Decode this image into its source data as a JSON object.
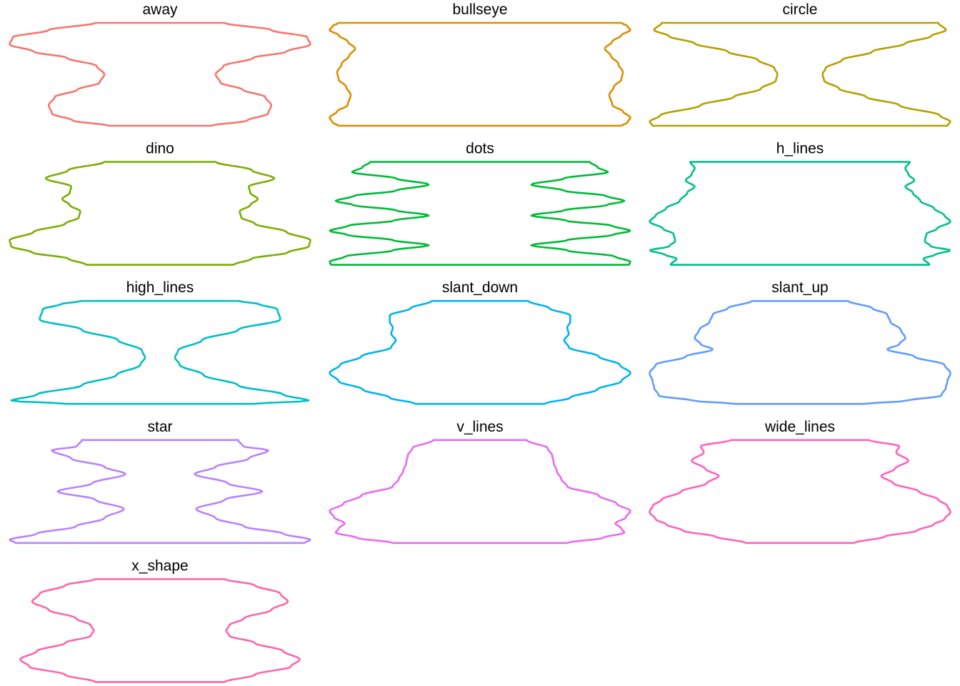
{
  "chart_data": {
    "type": "violin",
    "layout": "facet grid, 3 columns, free y-scales, axes hidden",
    "grid": false,
    "legend": "none",
    "panels": [
      {
        "name": "away",
        "color": "#F8766D",
        "profile": [
          [
            0,
            0.34
          ],
          [
            0.05,
            0.58
          ],
          [
            0.12,
            0.72
          ],
          [
            0.2,
            0.74
          ],
          [
            0.28,
            0.7
          ],
          [
            0.35,
            0.55
          ],
          [
            0.42,
            0.4
          ],
          [
            0.5,
            0.37
          ],
          [
            0.58,
            0.42
          ],
          [
            0.66,
            0.62
          ],
          [
            0.72,
            0.84
          ],
          [
            0.79,
            1.0
          ],
          [
            0.86,
            0.98
          ],
          [
            0.93,
            0.74
          ],
          [
            1,
            0.43
          ]
        ]
      },
      {
        "name": "bullseye",
        "color": "#DE8C00",
        "profile": [
          [
            0,
            0.94
          ],
          [
            0.03,
            0.98
          ],
          [
            0.08,
            1.0
          ],
          [
            0.14,
            0.95
          ],
          [
            0.2,
            0.88
          ],
          [
            0.3,
            0.86
          ],
          [
            0.38,
            0.89
          ],
          [
            0.45,
            0.94
          ],
          [
            0.52,
            0.95
          ],
          [
            0.6,
            0.92
          ],
          [
            0.68,
            0.87
          ],
          [
            0.75,
            0.83
          ],
          [
            0.82,
            0.88
          ],
          [
            0.88,
            0.94
          ],
          [
            0.93,
            1.0
          ],
          [
            0.97,
            0.98
          ],
          [
            1,
            0.94
          ]
        ]
      },
      {
        "name": "circle",
        "color": "#B79F00",
        "profile": [
          [
            0,
            0.98
          ],
          [
            0.04,
            1.0
          ],
          [
            0.1,
            0.93
          ],
          [
            0.2,
            0.66
          ],
          [
            0.28,
            0.44
          ],
          [
            0.36,
            0.26
          ],
          [
            0.44,
            0.16
          ],
          [
            0.5,
            0.15
          ],
          [
            0.56,
            0.17
          ],
          [
            0.64,
            0.28
          ],
          [
            0.72,
            0.48
          ],
          [
            0.8,
            0.7
          ],
          [
            0.87,
            0.87
          ],
          [
            0.93,
            0.97
          ],
          [
            1,
            0.92
          ]
        ]
      },
      {
        "name": "dino",
        "color": "#7CAE00",
        "profile": [
          [
            0,
            0.49
          ],
          [
            0.06,
            0.61
          ],
          [
            0.12,
            0.85
          ],
          [
            0.18,
            0.99
          ],
          [
            0.24,
            1.0
          ],
          [
            0.32,
            0.84
          ],
          [
            0.4,
            0.63
          ],
          [
            0.46,
            0.54
          ],
          [
            0.52,
            0.53
          ],
          [
            0.58,
            0.6
          ],
          [
            0.64,
            0.65
          ],
          [
            0.7,
            0.6
          ],
          [
            0.76,
            0.59
          ],
          [
            0.84,
            0.76
          ],
          [
            0.92,
            0.61
          ],
          [
            1,
            0.37
          ]
        ]
      },
      {
        "name": "dots",
        "color": "#00BA38",
        "profile": [
          [
            0,
            0.99
          ],
          [
            0.03,
            1.0
          ],
          [
            0.08,
            0.9
          ],
          [
            0.14,
            0.58
          ],
          [
            0.19,
            0.34
          ],
          [
            0.24,
            0.58
          ],
          [
            0.29,
            0.88
          ],
          [
            0.33,
            1.0
          ],
          [
            0.38,
            0.88
          ],
          [
            0.43,
            0.57
          ],
          [
            0.48,
            0.34
          ],
          [
            0.53,
            0.56
          ],
          [
            0.58,
            0.84
          ],
          [
            0.62,
            0.96
          ],
          [
            0.67,
            0.84
          ],
          [
            0.72,
            0.56
          ],
          [
            0.78,
            0.34
          ],
          [
            0.84,
            0.56
          ],
          [
            0.9,
            0.85
          ],
          [
            0.95,
            0.78
          ],
          [
            1,
            0.73
          ]
        ]
      },
      {
        "name": "h_lines",
        "color": "#00C08B",
        "profile": [
          [
            0,
            0.86
          ],
          [
            0.06,
            0.82
          ],
          [
            0.1,
            0.9
          ],
          [
            0.14,
            1.0
          ],
          [
            0.18,
            0.87
          ],
          [
            0.23,
            0.83
          ],
          [
            0.3,
            0.84
          ],
          [
            0.35,
            0.91
          ],
          [
            0.42,
            1.0
          ],
          [
            0.48,
            0.96
          ],
          [
            0.55,
            0.89
          ],
          [
            0.62,
            0.8
          ],
          [
            0.7,
            0.75
          ],
          [
            0.76,
            0.7
          ],
          [
            0.82,
            0.76
          ],
          [
            0.88,
            0.72
          ],
          [
            0.94,
            0.7
          ],
          [
            1,
            0.73
          ]
        ]
      },
      {
        "name": "high_lines",
        "color": "#00BFC4",
        "profile": [
          [
            0,
            0.62
          ],
          [
            0.03,
            0.99
          ],
          [
            0.09,
            0.82
          ],
          [
            0.18,
            0.52
          ],
          [
            0.28,
            0.29
          ],
          [
            0.38,
            0.13
          ],
          [
            0.45,
            0.1
          ],
          [
            0.52,
            0.12
          ],
          [
            0.62,
            0.28
          ],
          [
            0.72,
            0.52
          ],
          [
            0.82,
            0.8
          ],
          [
            0.92,
            0.78
          ],
          [
            0.97,
            0.66
          ],
          [
            1,
            0.52
          ]
        ]
      },
      {
        "name": "slant_down",
        "color": "#00B4F0",
        "profile": [
          [
            0,
            0.43
          ],
          [
            0.06,
            0.6
          ],
          [
            0.14,
            0.78
          ],
          [
            0.22,
            0.94
          ],
          [
            0.3,
            1.0
          ],
          [
            0.38,
            0.93
          ],
          [
            0.46,
            0.79
          ],
          [
            0.55,
            0.59
          ],
          [
            0.62,
            0.56
          ],
          [
            0.68,
            0.59
          ],
          [
            0.74,
            0.58
          ],
          [
            0.8,
            0.6
          ],
          [
            0.86,
            0.6
          ],
          [
            0.93,
            0.46
          ],
          [
            1,
            0.32
          ]
        ]
      },
      {
        "name": "slant_up",
        "color": "#619CFF",
        "profile": [
          [
            0,
            0.43
          ],
          [
            0.03,
            0.71
          ],
          [
            0.08,
            0.94
          ],
          [
            0.16,
            0.97
          ],
          [
            0.22,
            0.98
          ],
          [
            0.3,
            1.0
          ],
          [
            0.38,
            0.96
          ],
          [
            0.46,
            0.76
          ],
          [
            0.53,
            0.58
          ],
          [
            0.58,
            0.66
          ],
          [
            0.64,
            0.7
          ],
          [
            0.72,
            0.67
          ],
          [
            0.8,
            0.6
          ],
          [
            0.87,
            0.58
          ],
          [
            0.93,
            0.48
          ],
          [
            1,
            0.32
          ]
        ]
      },
      {
        "name": "star",
        "color": "#B983FF",
        "profile": [
          [
            0,
            0.96
          ],
          [
            0.03,
            1.0
          ],
          [
            0.09,
            0.82
          ],
          [
            0.16,
            0.56
          ],
          [
            0.24,
            0.37
          ],
          [
            0.33,
            0.24
          ],
          [
            0.42,
            0.43
          ],
          [
            0.5,
            0.68
          ],
          [
            0.58,
            0.45
          ],
          [
            0.67,
            0.23
          ],
          [
            0.74,
            0.37
          ],
          [
            0.82,
            0.59
          ],
          [
            0.9,
            0.72
          ],
          [
            0.94,
            0.55
          ],
          [
            1,
            0.52
          ]
        ]
      },
      {
        "name": "v_lines",
        "color": "#E76BF3",
        "profile": [
          [
            0,
            0.58
          ],
          [
            0.05,
            0.82
          ],
          [
            0.1,
            0.96
          ],
          [
            0.14,
            0.94
          ],
          [
            0.19,
            0.9
          ],
          [
            0.25,
            0.97
          ],
          [
            0.31,
            1.0
          ],
          [
            0.38,
            0.91
          ],
          [
            0.46,
            0.79
          ],
          [
            0.55,
            0.58
          ],
          [
            0.62,
            0.54
          ],
          [
            0.7,
            0.51
          ],
          [
            0.78,
            0.49
          ],
          [
            0.85,
            0.48
          ],
          [
            0.92,
            0.45
          ],
          [
            1,
            0.31
          ]
        ]
      },
      {
        "name": "wide_lines",
        "color": "#FF62BC",
        "profile": [
          [
            0,
            0.36
          ],
          [
            0.06,
            0.56
          ],
          [
            0.12,
            0.78
          ],
          [
            0.18,
            0.89
          ],
          [
            0.23,
            0.96
          ],
          [
            0.3,
            1.0
          ],
          [
            0.36,
            0.98
          ],
          [
            0.42,
            0.92
          ],
          [
            0.5,
            0.79
          ],
          [
            0.58,
            0.62
          ],
          [
            0.65,
            0.54
          ],
          [
            0.72,
            0.63
          ],
          [
            0.8,
            0.72
          ],
          [
            0.88,
            0.64
          ],
          [
            0.94,
            0.66
          ],
          [
            1,
            0.46
          ]
        ]
      },
      {
        "name": "x_shape",
        "color": "#FF66A8",
        "profile": [
          [
            0,
            0.43
          ],
          [
            0.07,
            0.63
          ],
          [
            0.15,
            0.87
          ],
          [
            0.22,
            0.93
          ],
          [
            0.3,
            0.82
          ],
          [
            0.38,
            0.63
          ],
          [
            0.45,
            0.46
          ],
          [
            0.5,
            0.44
          ],
          [
            0.55,
            0.46
          ],
          [
            0.62,
            0.56
          ],
          [
            0.7,
            0.74
          ],
          [
            0.78,
            0.85
          ],
          [
            0.86,
            0.8
          ],
          [
            0.94,
            0.63
          ],
          [
            1,
            0.43
          ]
        ]
      }
    ]
  }
}
